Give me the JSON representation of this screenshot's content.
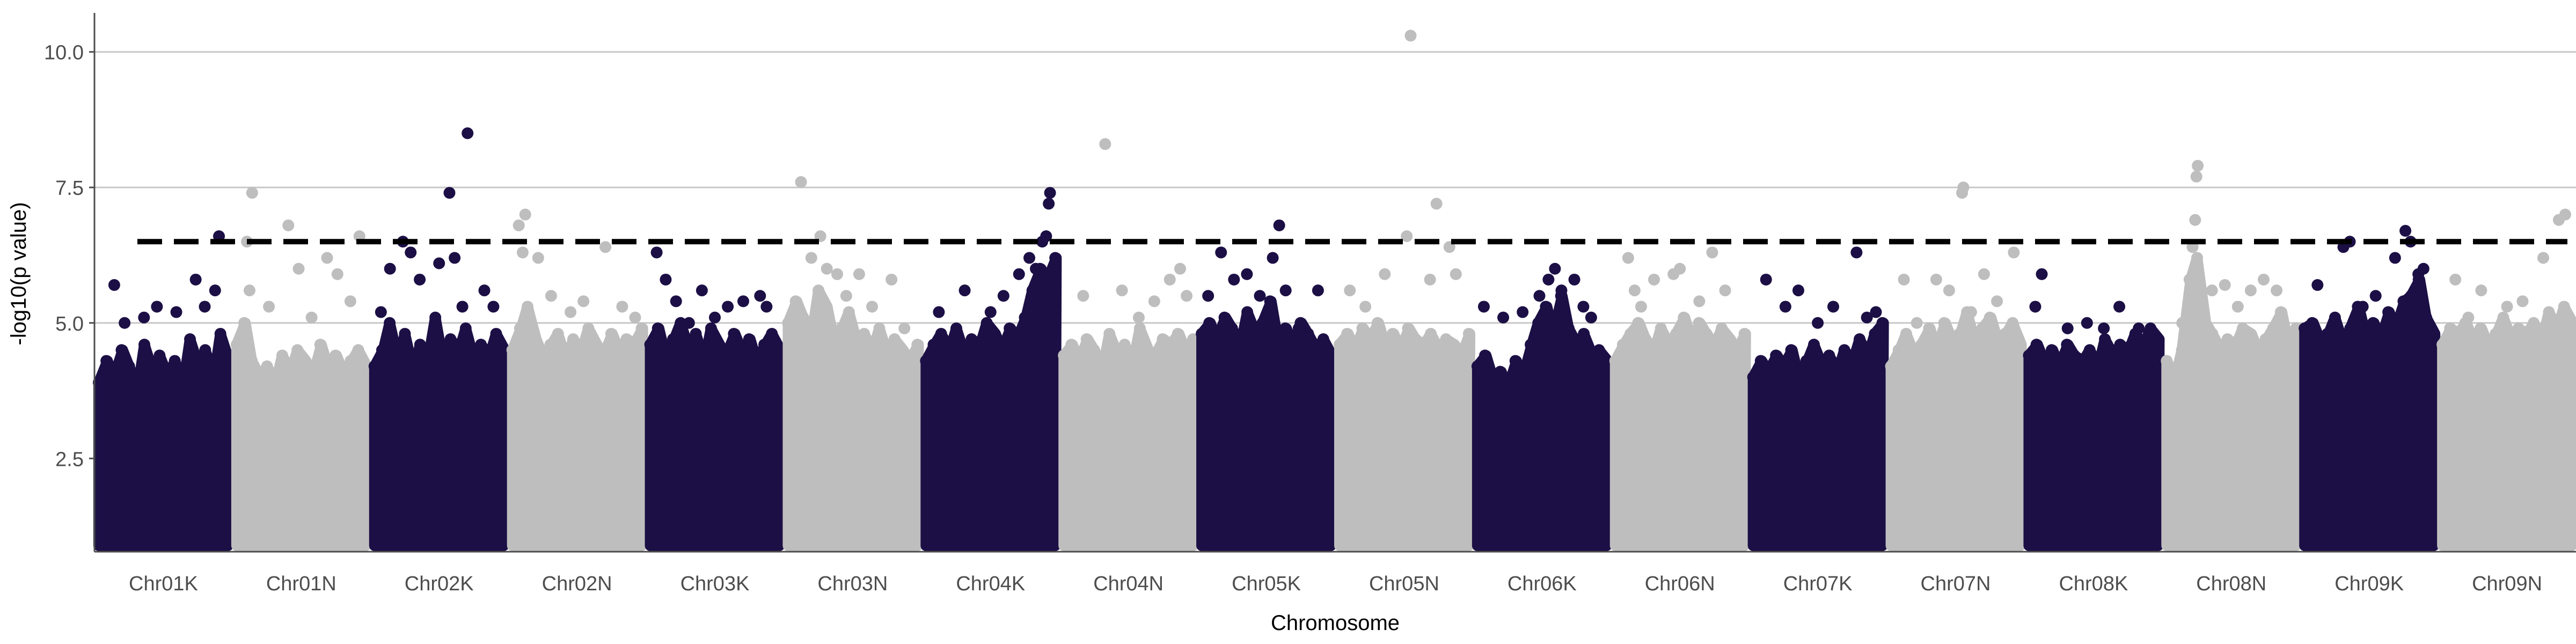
{
  "chart_data": {
    "type": "scatter",
    "subtype": "manhattan",
    "title": "",
    "xlabel": "Chromosome",
    "ylabel": "-log10(p value)",
    "categories": [
      "Chr01K",
      "Chr01N",
      "Chr02K",
      "Chr02N",
      "Chr03K",
      "Chr03N",
      "Chr04K",
      "Chr04N",
      "Chr05K",
      "Chr05N",
      "Chr06K",
      "Chr06N",
      "Chr07K",
      "Chr07N",
      "Chr08K",
      "Chr08N",
      "Chr09K",
      "Chr09N"
    ],
    "ylim": [
      0.78,
      10.72
    ],
    "yticks": [
      2.5,
      5.0,
      7.5,
      10.0
    ],
    "yticks_text": [
      "2.5",
      "5.0",
      "7.5",
      "10.0"
    ],
    "threshold": 6.5,
    "colors": {
      "K": "#1c0f45",
      "N": "#bebebe",
      "threshold": "#000000",
      "grid": "#c8c8c8"
    },
    "grid_horizontal": true,
    "legend": "none",
    "band_min": 1.0,
    "chromosomes": [
      {
        "name": "Chr01K",
        "group": "K",
        "band_max": [
          3.9,
          4.3,
          4.0,
          4.5,
          4.2,
          3.8,
          4.6,
          4.1,
          4.4,
          4.0,
          4.3,
          3.9,
          4.7,
          4.2,
          4.5,
          4.0,
          4.8,
          4.3
        ],
        "peaks": [
          [
            0.12,
            5.7
          ],
          [
            0.2,
            5.0
          ],
          [
            0.35,
            5.1
          ],
          [
            0.45,
            5.3
          ],
          [
            0.6,
            5.2
          ],
          [
            0.75,
            5.8
          ],
          [
            0.82,
            5.3
          ],
          [
            0.9,
            5.6
          ],
          [
            0.93,
            6.6
          ]
        ]
      },
      {
        "name": "Chr01N",
        "group": "N",
        "band_max": [
          4.6,
          5.0,
          4.3,
          4.0,
          4.2,
          3.9,
          4.4,
          4.1,
          4.5,
          4.3,
          4.0,
          4.6,
          4.2,
          4.4,
          4.1,
          4.3,
          4.5,
          4.2
        ],
        "peaks": [
          [
            0.08,
            6.5
          ],
          [
            0.12,
            7.4
          ],
          [
            0.1,
            5.6
          ],
          [
            0.25,
            5.3
          ],
          [
            0.4,
            6.8
          ],
          [
            0.48,
            6.0
          ],
          [
            0.58,
            5.1
          ],
          [
            0.7,
            6.2
          ],
          [
            0.78,
            5.9
          ],
          [
            0.88,
            5.4
          ],
          [
            0.95,
            6.6
          ]
        ]
      },
      {
        "name": "Chr02K",
        "group": "K",
        "band_max": [
          4.2,
          4.5,
          5.0,
          4.3,
          4.8,
          4.1,
          4.6,
          4.4,
          5.1,
          4.2,
          4.7,
          4.5,
          4.9,
          4.3,
          4.6,
          4.4,
          4.8,
          4.5
        ],
        "peaks": [
          [
            0.05,
            5.2
          ],
          [
            0.12,
            6.0
          ],
          [
            0.22,
            6.5
          ],
          [
            0.28,
            6.3
          ],
          [
            0.35,
            5.8
          ],
          [
            0.5,
            6.1
          ],
          [
            0.58,
            7.4
          ],
          [
            0.62,
            6.2
          ],
          [
            0.68,
            5.3
          ],
          [
            0.72,
            8.5
          ],
          [
            0.85,
            5.6
          ],
          [
            0.92,
            5.3
          ]
        ]
      },
      {
        "name": "Chr02N",
        "group": "N",
        "band_max": [
          4.5,
          4.9,
          5.3,
          4.7,
          4.4,
          4.6,
          4.8,
          4.3,
          4.7,
          4.5,
          4.9,
          4.6,
          4.4,
          4.8,
          4.5,
          4.7,
          4.6,
          4.9
        ],
        "peaks": [
          [
            0.05,
            6.8
          ],
          [
            0.1,
            7.0
          ],
          [
            0.08,
            6.3
          ],
          [
            0.2,
            6.2
          ],
          [
            0.3,
            5.5
          ],
          [
            0.45,
            5.2
          ],
          [
            0.55,
            5.4
          ],
          [
            0.72,
            6.4
          ],
          [
            0.85,
            5.3
          ],
          [
            0.95,
            5.1
          ]
        ]
      },
      {
        "name": "Chr03K",
        "group": "K",
        "band_max": [
          4.6,
          4.9,
          4.4,
          4.7,
          5.0,
          4.5,
          4.8,
          4.3,
          4.9,
          4.6,
          4.4,
          4.8,
          4.5,
          4.7,
          4.3,
          4.6,
          4.8,
          4.5
        ],
        "peaks": [
          [
            0.05,
            6.3
          ],
          [
            0.12,
            5.8
          ],
          [
            0.2,
            5.4
          ],
          [
            0.3,
            5.0
          ],
          [
            0.4,
            5.6
          ],
          [
            0.5,
            5.1
          ],
          [
            0.6,
            5.3
          ],
          [
            0.72,
            5.4
          ],
          [
            0.85,
            5.5
          ],
          [
            0.9,
            5.3
          ]
        ]
      },
      {
        "name": "Chr03N",
        "group": "N",
        "band_max": [
          5.0,
          5.4,
          5.1,
          4.8,
          5.6,
          5.3,
          4.7,
          4.9,
          5.2,
          4.6,
          4.8,
          4.5,
          4.9,
          4.4,
          4.7,
          4.5,
          4.3,
          4.6
        ],
        "peaks": [
          [
            0.1,
            7.6
          ],
          [
            0.18,
            6.2
          ],
          [
            0.25,
            6.6
          ],
          [
            0.3,
            6.0
          ],
          [
            0.38,
            5.9
          ],
          [
            0.45,
            5.5
          ],
          [
            0.55,
            5.9
          ],
          [
            0.65,
            5.3
          ],
          [
            0.8,
            5.8
          ],
          [
            0.9,
            4.9
          ]
        ]
      },
      {
        "name": "Chr04K",
        "group": "K",
        "band_max": [
          4.3,
          4.6,
          4.8,
          4.5,
          4.9,
          4.4,
          4.7,
          4.6,
          5.0,
          4.8,
          4.5,
          4.9,
          4.7,
          5.1,
          5.6,
          6.0,
          5.8,
          6.2
        ],
        "peaks": [
          [
            0.1,
            5.2
          ],
          [
            0.3,
            5.6
          ],
          [
            0.5,
            5.2
          ],
          [
            0.6,
            5.5
          ],
          [
            0.72,
            5.9
          ],
          [
            0.8,
            6.2
          ],
          [
            0.85,
            6.0
          ],
          [
            0.9,
            6.5
          ],
          [
            0.93,
            6.6
          ],
          [
            0.95,
            7.2
          ],
          [
            0.96,
            7.4
          ]
        ]
      },
      {
        "name": "Chr04N",
        "group": "N",
        "band_max": [
          4.4,
          4.6,
          4.3,
          4.7,
          4.5,
          4.2,
          4.8,
          4.4,
          4.6,
          4.3,
          4.9,
          4.5,
          4.4,
          4.7,
          4.6,
          4.8,
          4.5,
          4.7
        ],
        "peaks": [
          [
            0.15,
            5.5
          ],
          [
            0.32,
            8.3
          ],
          [
            0.45,
            5.6
          ],
          [
            0.58,
            5.1
          ],
          [
            0.7,
            5.4
          ],
          [
            0.82,
            5.8
          ],
          [
            0.9,
            6.0
          ],
          [
            0.95,
            5.5
          ]
        ]
      },
      {
        "name": "Chr05K",
        "group": "K",
        "band_max": [
          4.8,
          5.0,
          4.7,
          5.1,
          4.9,
          4.6,
          5.2,
          4.8,
          5.0,
          5.4,
          4.7,
          4.9,
          4.6,
          5.0,
          4.8,
          4.5,
          4.7,
          4.4
        ],
        "peaks": [
          [
            0.05,
            5.5
          ],
          [
            0.15,
            6.3
          ],
          [
            0.25,
            5.8
          ],
          [
            0.35,
            5.9
          ],
          [
            0.45,
            5.5
          ],
          [
            0.55,
            6.2
          ],
          [
            0.6,
            6.8
          ],
          [
            0.65,
            5.6
          ],
          [
            0.75,
            4.9
          ],
          [
            0.9,
            5.6
          ]
        ]
      },
      {
        "name": "Chr05N",
        "group": "N",
        "band_max": [
          4.6,
          4.8,
          4.5,
          4.9,
          4.7,
          5.0,
          4.6,
          4.8,
          4.5,
          4.9,
          4.7,
          4.6,
          4.8,
          4.5,
          4.7,
          4.6,
          4.4,
          4.8
        ],
        "peaks": [
          [
            0.08,
            5.6
          ],
          [
            0.2,
            5.3
          ],
          [
            0.35,
            5.9
          ],
          [
            0.52,
            6.6
          ],
          [
            0.55,
            10.3
          ],
          [
            0.7,
            5.8
          ],
          [
            0.75,
            7.2
          ],
          [
            0.85,
            6.4
          ],
          [
            0.9,
            5.9
          ]
        ]
      },
      {
        "name": "Chr06K",
        "group": "K",
        "band_max": [
          4.2,
          4.4,
          4.0,
          4.1,
          3.8,
          4.3,
          4.0,
          4.6,
          5.0,
          5.3,
          4.8,
          5.5,
          4.9,
          4.6,
          4.8,
          4.4,
          4.5,
          4.3
        ],
        "peaks": [
          [
            0.05,
            5.3
          ],
          [
            0.2,
            5.1
          ],
          [
            0.35,
            5.2
          ],
          [
            0.48,
            5.5
          ],
          [
            0.55,
            5.8
          ],
          [
            0.6,
            6.0
          ],
          [
            0.65,
            5.6
          ],
          [
            0.75,
            5.8
          ],
          [
            0.82,
            5.3
          ],
          [
            0.88,
            5.1
          ]
        ]
      },
      {
        "name": "Chr06N",
        "group": "N",
        "band_max": [
          4.3,
          4.6,
          4.8,
          5.0,
          4.7,
          4.5,
          4.9,
          4.6,
          4.8,
          5.1,
          4.7,
          5.0,
          4.8,
          4.6,
          4.9,
          4.7,
          4.5,
          4.8
        ],
        "peaks": [
          [
            0.1,
            6.2
          ],
          [
            0.15,
            5.6
          ],
          [
            0.2,
            5.3
          ],
          [
            0.3,
            5.8
          ],
          [
            0.45,
            5.9
          ],
          [
            0.5,
            6.0
          ],
          [
            0.65,
            5.4
          ],
          [
            0.75,
            6.3
          ],
          [
            0.85,
            5.6
          ]
        ]
      },
      {
        "name": "Chr07K",
        "group": "K",
        "band_max": [
          4.0,
          4.3,
          4.1,
          4.4,
          4.2,
          4.5,
          4.0,
          4.3,
          4.6,
          4.2,
          4.4,
          4.1,
          4.5,
          4.3,
          4.7,
          4.4,
          4.8,
          5.0
        ],
        "peaks": [
          [
            0.1,
            5.8
          ],
          [
            0.25,
            5.3
          ],
          [
            0.35,
            5.6
          ],
          [
            0.5,
            5.0
          ],
          [
            0.62,
            5.3
          ],
          [
            0.8,
            6.3
          ],
          [
            0.88,
            5.1
          ],
          [
            0.95,
            5.2
          ]
        ]
      },
      {
        "name": "Chr07N",
        "group": "N",
        "band_max": [
          4.2,
          4.5,
          4.8,
          4.4,
          4.6,
          4.9,
          4.5,
          5.0,
          4.7,
          4.8,
          5.2,
          4.6,
          4.9,
          5.1,
          4.7,
          4.8,
          5.0,
          4.6
        ],
        "peaks": [
          [
            0.1,
            5.8
          ],
          [
            0.2,
            5.0
          ],
          [
            0.35,
            5.8
          ],
          [
            0.45,
            5.6
          ],
          [
            0.55,
            7.4
          ],
          [
            0.56,
            7.5
          ],
          [
            0.62,
            5.2
          ],
          [
            0.72,
            5.9
          ],
          [
            0.82,
            5.4
          ],
          [
            0.95,
            6.3
          ]
        ]
      },
      {
        "name": "Chr08K",
        "group": "K",
        "band_max": [
          4.4,
          4.6,
          4.3,
          4.5,
          4.2,
          4.6,
          4.4,
          4.3,
          4.5,
          4.2,
          4.7,
          4.4,
          4.6,
          4.5,
          4.8,
          4.6,
          4.9,
          4.7
        ],
        "peaks": [
          [
            0.05,
            5.3
          ],
          [
            0.1,
            5.9
          ],
          [
            0.3,
            4.9
          ],
          [
            0.45,
            5.0
          ],
          [
            0.58,
            4.9
          ],
          [
            0.7,
            5.3
          ],
          [
            0.85,
            4.9
          ]
        ]
      },
      {
        "name": "Chr08N",
        "group": "N",
        "band_max": [
          4.3,
          4.0,
          4.5,
          5.8,
          6.2,
          5.0,
          4.8,
          4.5,
          4.7,
          4.6,
          4.9,
          4.8,
          4.5,
          4.7,
          4.9,
          5.2,
          4.6,
          4.9
        ],
        "peaks": [
          [
            0.12,
            5.0
          ],
          [
            0.2,
            6.4
          ],
          [
            0.22,
            6.9
          ],
          [
            0.23,
            7.7
          ],
          [
            0.24,
            7.9
          ],
          [
            0.35,
            5.6
          ],
          [
            0.45,
            5.7
          ],
          [
            0.55,
            5.3
          ],
          [
            0.65,
            5.6
          ],
          [
            0.75,
            5.8
          ],
          [
            0.85,
            5.6
          ]
        ]
      },
      {
        "name": "Chr09K",
        "group": "K",
        "band_max": [
          4.9,
          5.0,
          4.7,
          4.8,
          5.1,
          4.6,
          4.9,
          5.3,
          4.8,
          5.0,
          4.7,
          5.2,
          4.9,
          5.4,
          5.5,
          5.8,
          5.1,
          4.8
        ],
        "peaks": [
          [
            0.1,
            5.7
          ],
          [
            0.3,
            6.4
          ],
          [
            0.35,
            6.5
          ],
          [
            0.45,
            5.3
          ],
          [
            0.55,
            5.5
          ],
          [
            0.7,
            6.2
          ],
          [
            0.78,
            6.7
          ],
          [
            0.82,
            6.5
          ],
          [
            0.88,
            5.9
          ],
          [
            0.92,
            6.0
          ]
        ]
      },
      {
        "name": "Chr09N",
        "group": "N",
        "band_max": [
          4.6,
          4.9,
          4.8,
          5.0,
          4.7,
          4.9,
          4.6,
          4.8,
          5.1,
          4.7,
          4.9,
          4.8,
          5.0,
          4.7,
          5.2,
          4.9,
          5.3,
          5.0
        ],
        "peaks": [
          [
            0.1,
            5.8
          ],
          [
            0.2,
            5.1
          ],
          [
            0.3,
            5.6
          ],
          [
            0.5,
            5.3
          ],
          [
            0.62,
            5.4
          ],
          [
            0.78,
            6.2
          ],
          [
            0.9,
            6.9
          ],
          [
            0.95,
            7.0
          ]
        ]
      }
    ]
  }
}
